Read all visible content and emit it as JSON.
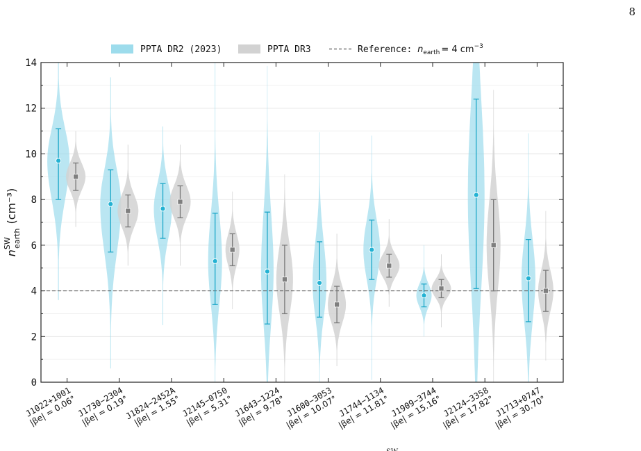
{
  "page": {
    "number": "8"
  },
  "chart_data": {
    "type": "violin",
    "ylabel": "n_earth^SW (cm^-3)",
    "ylabel_main": "n",
    "ylabel_sup": "SW",
    "ylabel_sub": "earth",
    "ylabel_unit": "(cm⁻³)",
    "ylim": [
      0,
      14
    ],
    "yticks": [
      0,
      2,
      4,
      6,
      8,
      10,
      12,
      14
    ],
    "grid": "horizontal",
    "legend_placement": "top-center",
    "legend": {
      "dr2": "PPTA DR2 (2023)",
      "dr3": "PPTA DR3",
      "ref_prefix": "Reference: ",
      "ref_var": "n",
      "ref_sub": "earth",
      "ref_value": "= 4 cm",
      "ref_exp": "−3"
    },
    "reference_line": 4,
    "colors": {
      "dr2_fill": "#9ddcec",
      "dr2_point": "#23b2d3",
      "dr2_bar": "#1aa6c7",
      "dr3_fill": "#d2d2d2",
      "dr3_point": "#7f7f7f",
      "dr3_bar": "#777777",
      "ref_line": "#555555"
    },
    "categories": [
      {
        "pulsar": "J1022+1001",
        "beta": "|βe| = 0.06°"
      },
      {
        "pulsar": "J1730−2304",
        "beta": "|βe| = 0.19°"
      },
      {
        "pulsar": "J1824−2452A",
        "beta": "|βe| = 1.55°"
      },
      {
        "pulsar": "J2145−0750",
        "beta": "|βe| = 5.31°"
      },
      {
        "pulsar": "J1643−1224",
        "beta": "|βe| = 9.78°"
      },
      {
        "pulsar": "J1600−3053",
        "beta": "|βe| = 10.07°"
      },
      {
        "pulsar": "J1744−1134",
        "beta": "|βe| = 11.81°"
      },
      {
        "pulsar": "J1909−3744",
        "beta": "|βe| = 15.16°"
      },
      {
        "pulsar": "J2124−3358",
        "beta": "|βe| = 17.82°"
      },
      {
        "pulsar": "J1713+0747",
        "beta": "|βe| = 30.70°"
      }
    ],
    "series": [
      {
        "name": "PPTA DR2 (2023)",
        "median": [
          9.7,
          7.8,
          7.6,
          5.3,
          4.85,
          4.35,
          5.8,
          3.8,
          8.2,
          4.55
        ],
        "lower": [
          8.0,
          5.7,
          6.3,
          3.4,
          2.55,
          2.85,
          4.5,
          3.3,
          4.1,
          2.65
        ],
        "upper": [
          11.1,
          9.3,
          8.7,
          7.4,
          7.45,
          6.15,
          7.1,
          4.3,
          12.4,
          6.25
        ],
        "min": [
          3.6,
          0.6,
          2.5,
          0,
          0,
          0,
          0.1,
          2.0,
          0,
          0
        ],
        "max": [
          14,
          13.35,
          11.2,
          14,
          13.85,
          10.95,
          10.8,
          6.0,
          14,
          10.9
        ],
        "width": [
          0.8,
          0.75,
          0.65,
          0.5,
          0.45,
          0.5,
          0.6,
          0.55,
          0.6,
          0.5
        ]
      },
      {
        "name": "PPTA DR3",
        "median": [
          9.0,
          7.5,
          7.9,
          5.8,
          4.5,
          3.4,
          5.1,
          4.1,
          6.0,
          4.0
        ],
        "lower": [
          8.4,
          6.8,
          7.2,
          5.1,
          3.0,
          2.6,
          4.6,
          3.7,
          4.0,
          3.1
        ],
        "upper": [
          9.6,
          8.2,
          8.6,
          6.5,
          6.0,
          4.2,
          5.6,
          4.5,
          8.0,
          4.9
        ],
        "min": [
          6.8,
          5.1,
          5.1,
          3.2,
          0,
          0.7,
          3.3,
          2.4,
          0,
          0.95
        ],
        "max": [
          11.0,
          10.4,
          10.4,
          8.35,
          9.1,
          6.5,
          7.15,
          5.6,
          12.8,
          7.5
        ],
        "width": [
          0.7,
          0.75,
          0.75,
          0.5,
          0.6,
          0.65,
          0.75,
          0.7,
          0.5,
          0.55
        ]
      }
    ],
    "caption_fragment": "SW"
  }
}
